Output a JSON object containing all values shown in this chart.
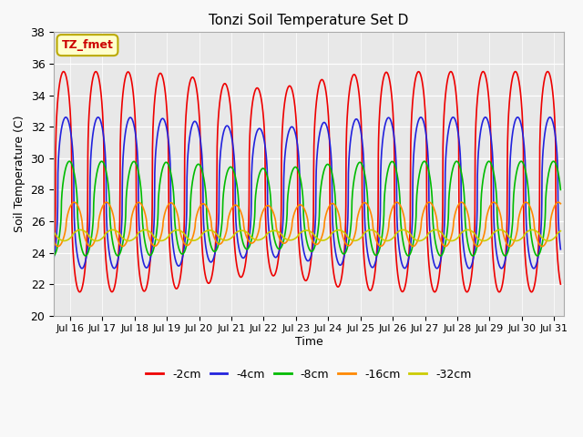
{
  "title": "Tonzi Soil Temperature Set D",
  "xlabel": "Time",
  "ylabel": "Soil Temperature (C)",
  "ylim": [
    20,
    38
  ],
  "xlim_days": [
    15.5,
    31.3
  ],
  "annotation_text": "TZ_fmet",
  "annotation_box_color": "#ffffcc",
  "annotation_border_color": "#bbaa00",
  "annotation_text_color": "#cc0000",
  "fig_bg_color": "#f8f8f8",
  "plot_bg_color": "#e8e8e8",
  "series_colors": {
    "-2cm": "#ee0000",
    "-4cm": "#2222dd",
    "-8cm": "#00bb00",
    "-16cm": "#ff8800",
    "-32cm": "#cccc00"
  },
  "series_linewidth": 1.2,
  "n_points": 2000,
  "start_day": 15.5,
  "end_day": 31.2,
  "amplitudes": {
    "-2cm": 7.0,
    "-4cm": 4.8,
    "-8cm": 3.0,
    "-16cm": 1.4,
    "-32cm": 0.35
  },
  "phase_shifts": {
    "-2cm": 0.0,
    "-4cm": 0.07,
    "-8cm": 0.18,
    "-16cm": 0.33,
    "-32cm": 0.52
  },
  "mean_temps": {
    "-2cm": 28.5,
    "-4cm": 27.8,
    "-8cm": 26.8,
    "-16cm": 25.8,
    "-32cm": 25.1
  },
  "sharpness": {
    "-2cm": 0.35,
    "-4cm": 0.4,
    "-8cm": 0.55,
    "-16cm": 0.65,
    "-32cm": 0.75
  },
  "yticks": [
    20,
    22,
    24,
    26,
    28,
    30,
    32,
    34,
    36,
    38
  ],
  "xtick_days": [
    16,
    17,
    18,
    19,
    20,
    21,
    22,
    23,
    24,
    25,
    26,
    27,
    28,
    29,
    30,
    31
  ],
  "xtick_labels": [
    "Jul 16",
    "Jul 17",
    "Jul 18",
    "Jul 19",
    "Jul 20",
    "Jul 21",
    "Jul 22",
    "Jul 23",
    "Jul 24",
    "Jul 25",
    "Jul 26",
    "Jul 27",
    "Jul 28",
    "Jul 29",
    "Jul 30",
    "Jul 31"
  ]
}
